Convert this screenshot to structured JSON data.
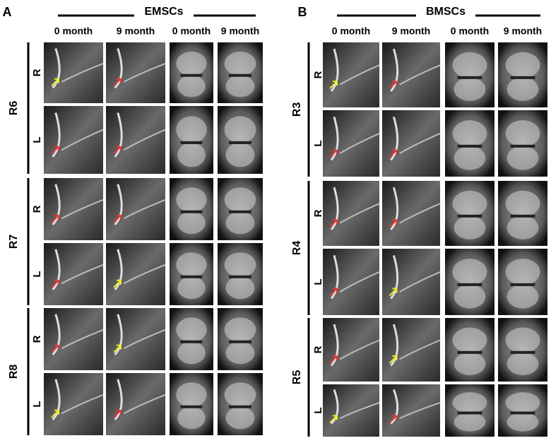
{
  "panels": [
    {
      "letter": "A",
      "group": "EMSCs",
      "columns": [
        "0 month",
        "9 month",
        "0 month",
        "9 month"
      ],
      "subjects": [
        {
          "id": "R6",
          "sides": [
            "R",
            "L"
          ]
        },
        {
          "id": "R7",
          "sides": [
            "R",
            "L"
          ]
        },
        {
          "id": "R8",
          "sides": [
            "R",
            "L"
          ]
        }
      ]
    },
    {
      "letter": "B",
      "group": "BMSCs",
      "columns": [
        "0 month",
        "9 month",
        "0 month",
        "9 month"
      ],
      "subjects": [
        {
          "id": "R3",
          "sides": [
            "R",
            "L"
          ]
        },
        {
          "id": "R4",
          "sides": [
            "R",
            "L"
          ]
        },
        {
          "id": "R5",
          "sides": [
            "R",
            "L"
          ]
        }
      ]
    }
  ]
}
